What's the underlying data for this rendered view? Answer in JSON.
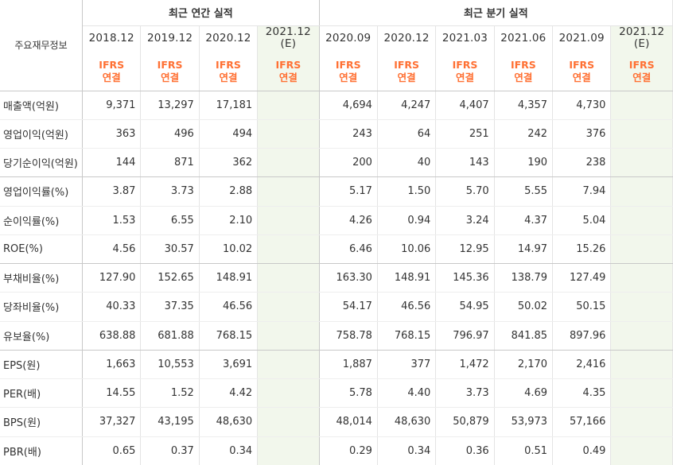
{
  "header": {
    "label_column": "주요재무정보",
    "annual_group": "최근 연간 실적",
    "quarterly_group": "최근 분기 실적",
    "ifrs_line1": "IFRS",
    "ifrs_line2": "연결",
    "annual_periods": [
      "2018.12",
      "2019.12",
      "2020.12",
      "2021.12"
    ],
    "quarterly_periods": [
      "2020.09",
      "2020.12",
      "2021.03",
      "2021.06",
      "2021.09",
      "2021.12"
    ],
    "estimate_mark": "(E)"
  },
  "rows": [
    {
      "label": "매출액(억원)",
      "annual": [
        "9,371",
        "13,297",
        "17,181",
        ""
      ],
      "quarterly": [
        "4,694",
        "4,247",
        "4,407",
        "4,357",
        "4,730",
        ""
      ]
    },
    {
      "label": "영업이익(억원)",
      "annual": [
        "363",
        "496",
        "494",
        ""
      ],
      "quarterly": [
        "243",
        "64",
        "251",
        "242",
        "376",
        ""
      ]
    },
    {
      "label": "당기순이익(억원)",
      "annual": [
        "144",
        "871",
        "362",
        ""
      ],
      "quarterly": [
        "200",
        "40",
        "143",
        "190",
        "238",
        ""
      ]
    },
    {
      "label": "영업이익률(%)",
      "annual": [
        "3.87",
        "3.73",
        "2.88",
        ""
      ],
      "quarterly": [
        "5.17",
        "1.50",
        "5.70",
        "5.55",
        "7.94",
        ""
      ]
    },
    {
      "label": "순이익률(%)",
      "annual": [
        "1.53",
        "6.55",
        "2.10",
        ""
      ],
      "quarterly": [
        "4.26",
        "0.94",
        "3.24",
        "4.37",
        "5.04",
        ""
      ]
    },
    {
      "label": "ROE(%)",
      "annual": [
        "4.56",
        "30.57",
        "10.02",
        ""
      ],
      "quarterly": [
        "6.46",
        "10.06",
        "12.95",
        "14.97",
        "15.26",
        ""
      ]
    },
    {
      "label": "부채비율(%)",
      "annual": [
        "127.90",
        "152.65",
        "148.91",
        ""
      ],
      "quarterly": [
        "163.30",
        "148.91",
        "145.36",
        "138.79",
        "127.49",
        ""
      ]
    },
    {
      "label": "당좌비율(%)",
      "annual": [
        "40.33",
        "37.35",
        "46.56",
        ""
      ],
      "quarterly": [
        "54.17",
        "46.56",
        "54.95",
        "50.02",
        "50.15",
        ""
      ]
    },
    {
      "label": "유보율(%)",
      "annual": [
        "638.88",
        "681.88",
        "768.15",
        ""
      ],
      "quarterly": [
        "758.78",
        "768.15",
        "796.97",
        "841.85",
        "897.96",
        ""
      ]
    },
    {
      "label": "EPS(원)",
      "annual": [
        "1,663",
        "10,553",
        "3,691",
        ""
      ],
      "quarterly": [
        "1,887",
        "377",
        "1,472",
        "2,170",
        "2,416",
        ""
      ]
    },
    {
      "label": "PER(배)",
      "annual": [
        "14.55",
        "1.52",
        "4.42",
        ""
      ],
      "quarterly": [
        "5.78",
        "4.40",
        "3.73",
        "4.69",
        "4.35",
        ""
      ]
    },
    {
      "label": "BPS(원)",
      "annual": [
        "37,327",
        "43,195",
        "48,630",
        ""
      ],
      "quarterly": [
        "48,014",
        "48,630",
        "50,879",
        "53,973",
        "57,166",
        ""
      ]
    },
    {
      "label": "PBR(배)",
      "annual": [
        "0.65",
        "0.37",
        "0.34",
        ""
      ],
      "quarterly": [
        "0.29",
        "0.34",
        "0.36",
        "0.51",
        "0.49",
        ""
      ]
    }
  ]
}
